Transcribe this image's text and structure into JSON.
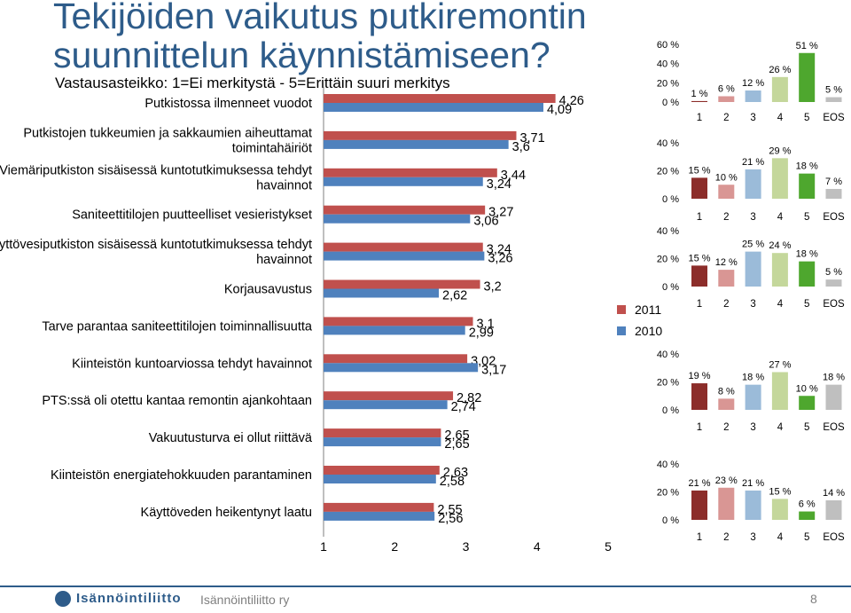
{
  "slide": {
    "title": "Tekijöiden vaikutus putkiremontin\nsuunnittelun käynnistämiseen?",
    "subtitle": "Vastausasteikko: 1=Ei merkitystä - 5=Erittäin suuri merkitys",
    "footer_logo_text": "Isännöintiliitto",
    "footer_org": "Isännöintiliitto ry",
    "page_number": "8"
  },
  "colors": {
    "series_2011": "#c0504d",
    "series_2010": "#4f81bd",
    "text": "#000000",
    "title": "#2e5c8a"
  },
  "chart_data": [
    {
      "type": "bar",
      "orientation": "horizontal",
      "categories": [
        "Putkistossa ilmenneet vuodot",
        "Putkistojen tukkeumien ja sakkaumien aiheuttamat\ntoimintahäiriöt",
        "Viemäriputkiston sisäisessä kuntotutkimuksessa tehdyt\nhavainnot",
        "Saniteettitilojen puutteelliset vesieristykset",
        "Käyttövesiputkiston sisäisessä kuntotutkimuksessa tehdyt\nhavainnot",
        "Korjausavustus",
        "Tarve parantaa saniteettitilojen toiminnallisuutta",
        "Kiinteistön kuntoarviossa tehdyt havainnot",
        "PTS:ssä oli otettu kantaa remontin ajankohtaan",
        "Vakuutusturva ei ollut riittävä",
        "Kiinteistön energiatehokkuuden parantaminen",
        "Käyttöveden heikentynyt laatu"
      ],
      "series": [
        {
          "name": "2011",
          "values": [
            4.26,
            3.71,
            3.44,
            3.27,
            3.24,
            3.2,
            3.1,
            3.02,
            2.82,
            2.65,
            2.63,
            2.55
          ]
        },
        {
          "name": "2010",
          "values": [
            4.09,
            3.6,
            3.24,
            3.06,
            3.26,
            2.62,
            2.99,
            3.17,
            2.74,
            2.65,
            2.58,
            2.56
          ]
        }
      ],
      "value_labels": {
        "2011": [
          "4,26",
          "3,71",
          "3,44",
          "3,27",
          "3,24",
          "3,2",
          "3,1",
          "3,02",
          "2,82",
          "2,65",
          "2,63",
          "2,55"
        ],
        "2010": [
          "4,09",
          "3,6",
          "3,24",
          "3,06",
          "3,26",
          "2,62",
          "2,99",
          "3,17",
          "2,74",
          "2,65",
          "2,58",
          "2,56"
        ]
      },
      "xlim": [
        1,
        5
      ],
      "xticks": [
        "1",
        "2",
        "3",
        "4",
        "5"
      ],
      "legend": {
        "entries": [
          "2011",
          "2010"
        ]
      }
    },
    {
      "type": "bar",
      "categories": [
        "1",
        "2",
        "3",
        "4",
        "5",
        "EOS"
      ],
      "values": [
        1,
        6,
        12,
        26,
        51,
        5
      ],
      "labels": [
        "1 %",
        "6 %",
        "12 %",
        "26 %",
        "51 %",
        "5 %"
      ],
      "colors": [
        "#8c2d2a",
        "#d99694",
        "#9bbbd9",
        "#c4d79b",
        "#4ea72e",
        "#bfbfbf"
      ],
      "ylim": [
        0,
        60
      ],
      "yticks": [
        "0 %",
        "20 %",
        "40 %",
        "60 %"
      ]
    },
    {
      "type": "bar",
      "categories": [
        "1",
        "2",
        "3",
        "4",
        "5",
        "EOS"
      ],
      "values": [
        15,
        10,
        21,
        29,
        18,
        7
      ],
      "labels": [
        "15 %",
        "10 %",
        "21 %",
        "29 %",
        "18 %",
        "7 %"
      ],
      "colors": [
        "#8c2d2a",
        "#d99694",
        "#9bbbd9",
        "#c4d79b",
        "#4ea72e",
        "#bfbfbf"
      ],
      "ylim": [
        0,
        40
      ],
      "yticks": [
        "0 %",
        "20 %",
        "40 %"
      ]
    },
    {
      "type": "bar",
      "categories": [
        "1",
        "2",
        "3",
        "4",
        "5",
        "EOS"
      ],
      "values": [
        15,
        12,
        25,
        24,
        18,
        5
      ],
      "labels": [
        "15 %",
        "12 %",
        "25 %",
        "24 %",
        "18 %",
        "5 %"
      ],
      "colors": [
        "#8c2d2a",
        "#d99694",
        "#9bbbd9",
        "#c4d79b",
        "#4ea72e",
        "#bfbfbf"
      ],
      "ylim": [
        0,
        40
      ],
      "yticks": [
        "0 %",
        "20 %",
        "40 %"
      ]
    },
    {
      "type": "bar",
      "categories": [
        "1",
        "2",
        "3",
        "4",
        "5",
        "EOS"
      ],
      "values": [
        19,
        8,
        18,
        27,
        10,
        18
      ],
      "labels": [
        "19 %",
        "8 %",
        "18 %",
        "27 %",
        "10 %",
        "18 %"
      ],
      "colors": [
        "#8c2d2a",
        "#d99694",
        "#9bbbd9",
        "#c4d79b",
        "#4ea72e",
        "#bfbfbf"
      ],
      "ylim": [
        0,
        40
      ],
      "yticks": [
        "0 %",
        "20 %",
        "40 %"
      ]
    },
    {
      "type": "bar",
      "categories": [
        "1",
        "2",
        "3",
        "4",
        "5",
        "EOS"
      ],
      "values": [
        21,
        23,
        21,
        15,
        6,
        14
      ],
      "labels": [
        "21 %",
        "23 %",
        "21 %",
        "15 %",
        "6 %",
        "14 %"
      ],
      "colors": [
        "#8c2d2a",
        "#d99694",
        "#9bbbd9",
        "#c4d79b",
        "#4ea72e",
        "#bfbfbf"
      ],
      "ylim": [
        0,
        40
      ],
      "yticks": [
        "0 %",
        "20 %",
        "40 %"
      ]
    }
  ]
}
